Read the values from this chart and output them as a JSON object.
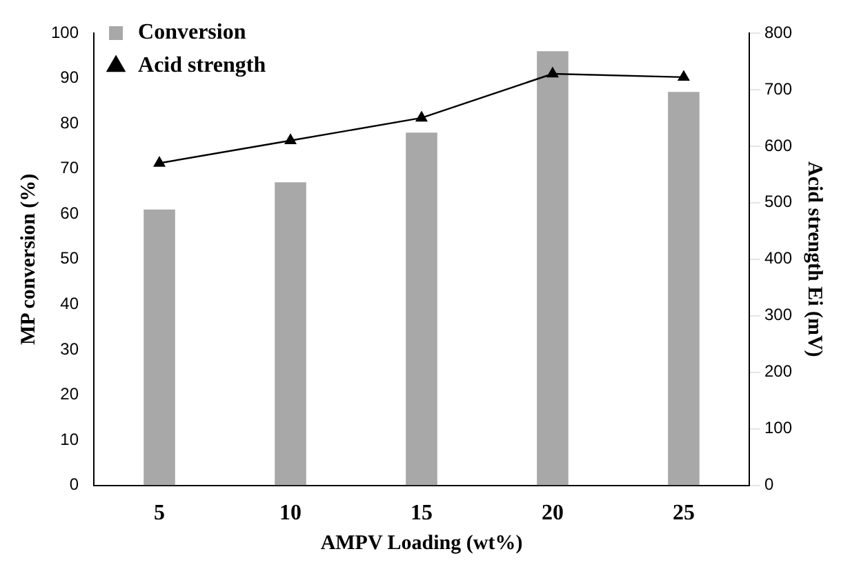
{
  "chart_data": {
    "type": "bar",
    "xlabel": "AMPV Loading (wt%)",
    "ylabel": "MP conversion (%)",
    "y2label": "Acid strength Ei (mV)",
    "categories": [
      "5",
      "10",
      "15",
      "20",
      "25"
    ],
    "series": [
      {
        "name": "Conversion",
        "color": "#a8a8a8",
        "values": [
          61,
          67,
          78,
          96,
          87
        ]
      },
      {
        "name": "Acid strength",
        "type": "line",
        "axis": "y2",
        "color": "#000000",
        "marker": "triangle",
        "values": [
          570,
          610,
          650,
          728,
          722
        ]
      }
    ],
    "ylim": [
      0,
      100
    ],
    "yticks": [
      0,
      10,
      20,
      30,
      40,
      50,
      60,
      70,
      80,
      90,
      100
    ],
    "y2lim": [
      0,
      800
    ],
    "y2ticks": [
      0,
      100,
      200,
      300,
      400,
      500,
      600,
      700,
      800
    ],
    "grid": false,
    "legend": "top left"
  }
}
